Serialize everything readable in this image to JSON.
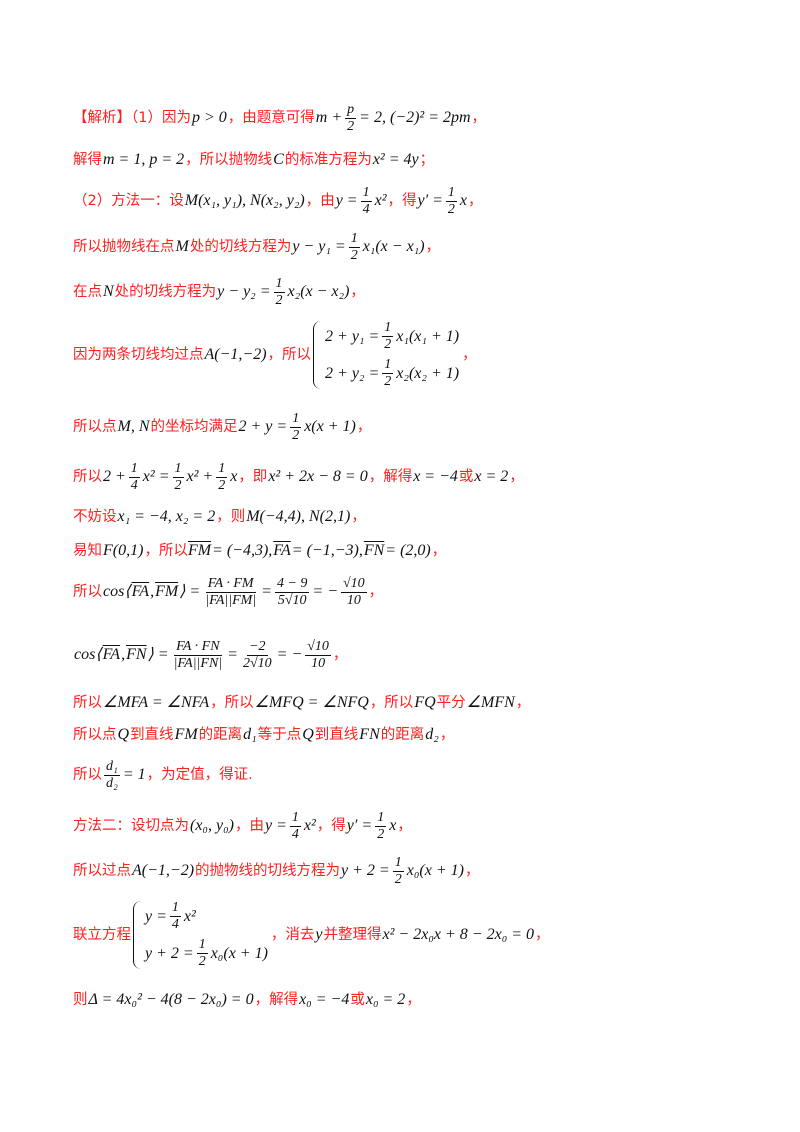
{
  "colors": {
    "text_red": "#ff2020",
    "math": "#111111"
  },
  "lines": [
    [
      [
        "t",
        "【解析】（1）因为"
      ],
      [
        "m",
        "p > 0"
      ],
      [
        "t",
        "，由题意可得"
      ],
      [
        "m",
        "m +"
      ],
      [
        "f",
        "p",
        "2"
      ],
      [
        "m",
        "= 2, (−2)² = 2pm"
      ],
      [
        "t",
        "，"
      ]
    ],
    [
      [
        "t",
        "解得"
      ],
      [
        "m",
        "m = 1, p = 2"
      ],
      [
        "t",
        "，所以抛物线"
      ],
      [
        "m",
        "C"
      ],
      [
        "t",
        "的标准方程为"
      ],
      [
        "m",
        "x² = 4y"
      ],
      [
        "t",
        "；"
      ]
    ],
    [
      [
        "t",
        "（2）方法一：设"
      ],
      [
        "m",
        "M(x₁, y₁), N(x₂, y₂)"
      ],
      [
        "t",
        "，由"
      ],
      [
        "m",
        "y ="
      ],
      [
        "f",
        "1",
        "4"
      ],
      [
        "m",
        "x²"
      ],
      [
        "t",
        "，得"
      ],
      [
        "m",
        "y′ ="
      ],
      [
        "f",
        "1",
        "2"
      ],
      [
        "m",
        "x"
      ],
      [
        "t",
        "，"
      ]
    ],
    [
      [
        "t",
        "所以抛物线在点"
      ],
      [
        "m",
        "M"
      ],
      [
        "t",
        "处的切线方程为"
      ],
      [
        "m",
        "y − y₁ ="
      ],
      [
        "f",
        "1",
        "2"
      ],
      [
        "m",
        "x₁(x − x₁)"
      ],
      [
        "t",
        "，"
      ]
    ],
    [
      [
        "t",
        "在点"
      ],
      [
        "m",
        "N"
      ],
      [
        "t",
        "处的切线方程为"
      ],
      [
        "m",
        "y − y₂ ="
      ],
      [
        "f",
        "1",
        "2"
      ],
      [
        "m",
        "x₂(x − x₂)"
      ],
      [
        "t",
        "，"
      ]
    ],
    [
      [
        "t",
        "因为两条切线均过点"
      ],
      [
        "m",
        "A(−1,−2)"
      ],
      [
        "t",
        "，所以"
      ],
      [
        "b",
        [
          [
            [
              "m",
              "2 + y₁ ="
            ],
            [
              "f",
              "1",
              "2"
            ],
            [
              "m",
              "x₁(x₁ + 1)"
            ]
          ],
          [
            [
              "m",
              "2 + y₂ ="
            ],
            [
              "f",
              "1",
              "2"
            ],
            [
              "m",
              "x₂(x₂ + 1)"
            ]
          ]
        ]
      ],
      [
        "t",
        "，"
      ]
    ],
    [
      [
        "t",
        "所以点"
      ],
      [
        "m",
        "M, N"
      ],
      [
        "t",
        "的坐标均满足"
      ],
      [
        "m",
        "2 + y ="
      ],
      [
        "f",
        "1",
        "2"
      ],
      [
        "m",
        "x(x + 1)"
      ],
      [
        "t",
        "，"
      ]
    ],
    [
      [
        "t",
        "所以"
      ],
      [
        "m",
        "2 +"
      ],
      [
        "f",
        "1",
        "4"
      ],
      [
        "m",
        "x² ="
      ],
      [
        "f",
        "1",
        "2"
      ],
      [
        "m",
        "x² +"
      ],
      [
        "f",
        "1",
        "2"
      ],
      [
        "m",
        "x"
      ],
      [
        "t",
        "，即"
      ],
      [
        "m",
        "x² + 2x − 8 = 0"
      ],
      [
        "t",
        "，解得"
      ],
      [
        "m",
        "x = −4"
      ],
      [
        "t",
        "或"
      ],
      [
        "m",
        "x = 2"
      ],
      [
        "t",
        "，"
      ]
    ],
    [
      [
        "t",
        "不妨设"
      ],
      [
        "m",
        "x₁ = −4, x₂ = 2"
      ],
      [
        "t",
        "，则"
      ],
      [
        "m",
        "M(−4,4), N(2,1)"
      ],
      [
        "t",
        "，"
      ]
    ],
    [
      [
        "t",
        "易知"
      ],
      [
        "m",
        "F(0,1)"
      ],
      [
        "t",
        "，所以"
      ],
      [
        "v",
        "FM"
      ],
      [
        "m",
        "= (−4,3),"
      ],
      [
        "v",
        "FA"
      ],
      [
        "m",
        "= (−1,−3),"
      ],
      [
        "v",
        "FN"
      ],
      [
        "m",
        "= (2,0)"
      ],
      [
        "t",
        "，"
      ]
    ],
    [
      [
        "t",
        "所以"
      ],
      [
        "m",
        "cos⟨"
      ],
      [
        "v",
        "FA"
      ],
      [
        "m",
        ","
      ],
      [
        "v",
        "FM"
      ],
      [
        "m",
        "⟩ ="
      ],
      [
        "f",
        "FA · FM",
        "|FA||FM|"
      ],
      [
        "m",
        "="
      ],
      [
        "f",
        "4 − 9",
        "5√10"
      ],
      [
        "m",
        "= −"
      ],
      [
        "f",
        "√10",
        "10"
      ],
      [
        "t",
        "，"
      ]
    ],
    [
      [
        "m",
        "cos⟨"
      ],
      [
        "v",
        "FA"
      ],
      [
        "m",
        ","
      ],
      [
        "v",
        "FN"
      ],
      [
        "m",
        "⟩ ="
      ],
      [
        "f",
        "FA · FN",
        "|FA||FN|"
      ],
      [
        "m",
        "="
      ],
      [
        "f",
        "−2",
        "2√10"
      ],
      [
        "m",
        "= −"
      ],
      [
        "f",
        "√10",
        "10"
      ],
      [
        "t",
        "，"
      ]
    ],
    [
      [
        "t",
        "所以"
      ],
      [
        "m",
        "∠MFA = ∠NFA"
      ],
      [
        "t",
        "，所以"
      ],
      [
        "m",
        "∠MFQ = ∠NFQ"
      ],
      [
        "t",
        "，所以"
      ],
      [
        "m",
        "FQ"
      ],
      [
        "t",
        "平分"
      ],
      [
        "m",
        "∠MFN"
      ],
      [
        "t",
        "，"
      ]
    ],
    [
      [
        "t",
        "所以点"
      ],
      [
        "m",
        "Q"
      ],
      [
        "t",
        "到直线"
      ],
      [
        "m",
        "FM"
      ],
      [
        "t",
        "的距离"
      ],
      [
        "m",
        "d₁"
      ],
      [
        "t",
        "等于点"
      ],
      [
        "m",
        "Q"
      ],
      [
        "t",
        "到直线"
      ],
      [
        "m",
        "FN"
      ],
      [
        "t",
        "的距离"
      ],
      [
        "m",
        "d₂"
      ],
      [
        "t",
        "，"
      ]
    ],
    [
      [
        "t",
        "所以"
      ],
      [
        "f",
        "d₁",
        "d₂"
      ],
      [
        "m",
        "= 1"
      ],
      [
        "t",
        "，为定值，得证."
      ]
    ],
    [
      [
        "t",
        "方法二：设切点为"
      ],
      [
        "m",
        "(x₀, y₀)"
      ],
      [
        "t",
        "，由"
      ],
      [
        "m",
        "y ="
      ],
      [
        "f",
        "1",
        "4"
      ],
      [
        "m",
        "x²"
      ],
      [
        "t",
        "，得"
      ],
      [
        "m",
        "y′ ="
      ],
      [
        "f",
        "1",
        "2"
      ],
      [
        "m",
        "x"
      ],
      [
        "t",
        "，"
      ]
    ],
    [
      [
        "t",
        "所以过点"
      ],
      [
        "m",
        "A(−1,−2)"
      ],
      [
        "t",
        "的抛物线的切线方程为"
      ],
      [
        "m",
        "y + 2 ="
      ],
      [
        "f",
        "1",
        "2"
      ],
      [
        "m",
        "x₀(x + 1)"
      ],
      [
        "t",
        "，"
      ]
    ],
    [
      [
        "t",
        "联立方程"
      ],
      [
        "b",
        [
          [
            [
              "m",
              "y ="
            ],
            [
              "f",
              "1",
              "4"
            ],
            [
              "m",
              "x²"
            ]
          ],
          [
            [
              "m",
              "y + 2 ="
            ],
            [
              "f",
              "1",
              "2"
            ],
            [
              "m",
              "x₀(x + 1)"
            ]
          ]
        ]
      ],
      [
        "t",
        "，消去"
      ],
      [
        "m",
        "y"
      ],
      [
        "t",
        "并整理得"
      ],
      [
        "m",
        "x² − 2x₀x + 8 − 2x₀ = 0"
      ],
      [
        "t",
        "，"
      ]
    ],
    [
      [
        "t",
        "则"
      ],
      [
        "m",
        "Δ = 4x₀² − 4(8 − 2x₀) = 0"
      ],
      [
        "t",
        "，解得"
      ],
      [
        "m",
        "x₀ = −4"
      ],
      [
        "t",
        "或"
      ],
      [
        "m",
        "x₀ = 2"
      ],
      [
        "t",
        "，"
      ]
    ]
  ]
}
